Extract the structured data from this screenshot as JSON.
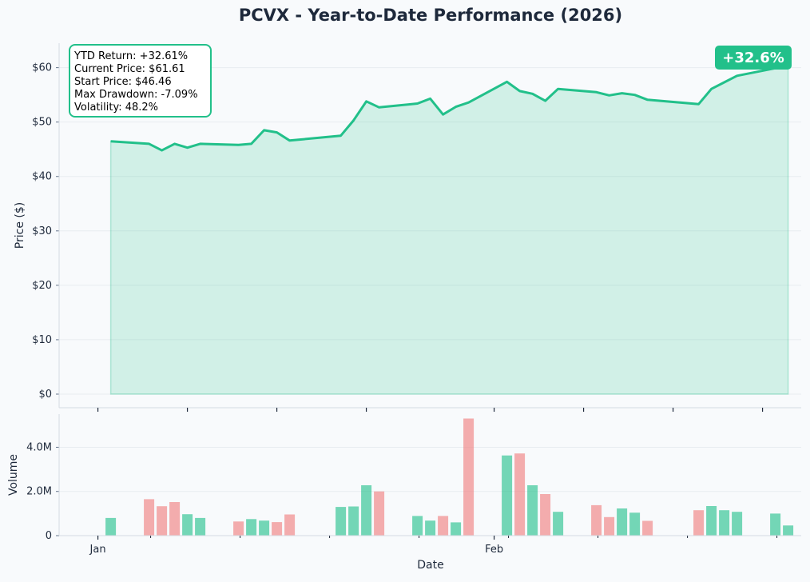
{
  "title": "PCVX - Year-to-Date Performance (2026)",
  "colors": {
    "up": "#22c08a",
    "down": "#f07c7c",
    "line": "#22c08a",
    "text": "#1e293b",
    "background": "#f8fafc"
  },
  "stats_box": {
    "lines": [
      "YTD Return: +32.61%",
      "Current Price: $61.61",
      "Start Price: $46.46",
      "Max Drawdown: -7.09%",
      "Volatility: 48.2%"
    ]
  },
  "return_badge": "+32.6%",
  "chart_data": [
    {
      "type": "area",
      "name": "price",
      "ylabel": "Price ($)",
      "ylim": [
        -2.5,
        64.5
      ],
      "yticks": [
        0,
        10,
        20,
        30,
        40,
        50,
        60
      ],
      "ytick_labels": [
        "$0",
        "$10",
        "$20",
        "$30",
        "$40",
        "$50",
        "$60"
      ],
      "grid": true,
      "x": [
        "2026-01-02",
        "2026-01-05",
        "2026-01-06",
        "2026-01-07",
        "2026-01-08",
        "2026-01-09",
        "2026-01-12",
        "2026-01-13",
        "2026-01-14",
        "2026-01-15",
        "2026-01-16",
        "2026-01-20",
        "2026-01-21",
        "2026-01-22",
        "2026-01-23",
        "2026-01-26",
        "2026-01-27",
        "2026-01-28",
        "2026-01-29",
        "2026-01-30",
        "2026-02-02",
        "2026-02-03",
        "2026-02-04",
        "2026-02-05",
        "2026-02-06",
        "2026-02-09",
        "2026-02-10",
        "2026-02-11",
        "2026-02-12",
        "2026-02-13",
        "2026-02-17",
        "2026-02-18",
        "2026-02-19",
        "2026-02-20",
        "2026-02-23",
        "2026-02-24"
      ],
      "values": [
        46.46,
        46.0,
        44.8,
        46.0,
        45.3,
        46.0,
        45.8,
        46.0,
        48.5,
        48.1,
        46.6,
        47.5,
        50.3,
        53.8,
        52.7,
        53.4,
        54.3,
        51.4,
        52.8,
        53.6,
        57.4,
        55.7,
        55.2,
        53.9,
        56.1,
        55.5,
        54.9,
        55.3,
        55.0,
        54.1,
        53.3,
        56.1,
        57.3,
        58.5,
        59.9,
        61.61
      ]
    },
    {
      "type": "bar",
      "name": "volume",
      "xlabel": "Date",
      "ylabel": "Volume",
      "ylim": [
        0,
        5500000
      ],
      "yticks": [
        0,
        2000000,
        4000000
      ],
      "ytick_labels": [
        "0",
        "2.0M",
        "4.0M"
      ],
      "xtick_labels": [
        {
          "date": "2026-01-01",
          "label": "Jan"
        },
        {
          "date": "2026-02-01",
          "label": "Feb"
        }
      ],
      "grid": true,
      "values": [
        800000,
        1650000,
        1330000,
        1520000,
        970000,
        800000,
        640000,
        750000,
        680000,
        610000,
        960000,
        1300000,
        1320000,
        2280000,
        2000000,
        890000,
        680000,
        890000,
        600000,
        5300000,
        3630000,
        3720000,
        2280000,
        1880000,
        1080000,
        1380000,
        840000,
        1230000,
        1040000,
        670000,
        1150000,
        1340000,
        1150000,
        1080000,
        1000000,
        460000
      ],
      "direction": [
        "up",
        "down",
        "down",
        "down",
        "up",
        "up",
        "down",
        "up",
        "up",
        "down",
        "down",
        "up",
        "up",
        "up",
        "down",
        "up",
        "up",
        "down",
        "up",
        "down",
        "up",
        "down",
        "up",
        "down",
        "up",
        "down",
        "down",
        "up",
        "up",
        "down",
        "down",
        "up",
        "up",
        "up",
        "up",
        "up"
      ]
    }
  ]
}
